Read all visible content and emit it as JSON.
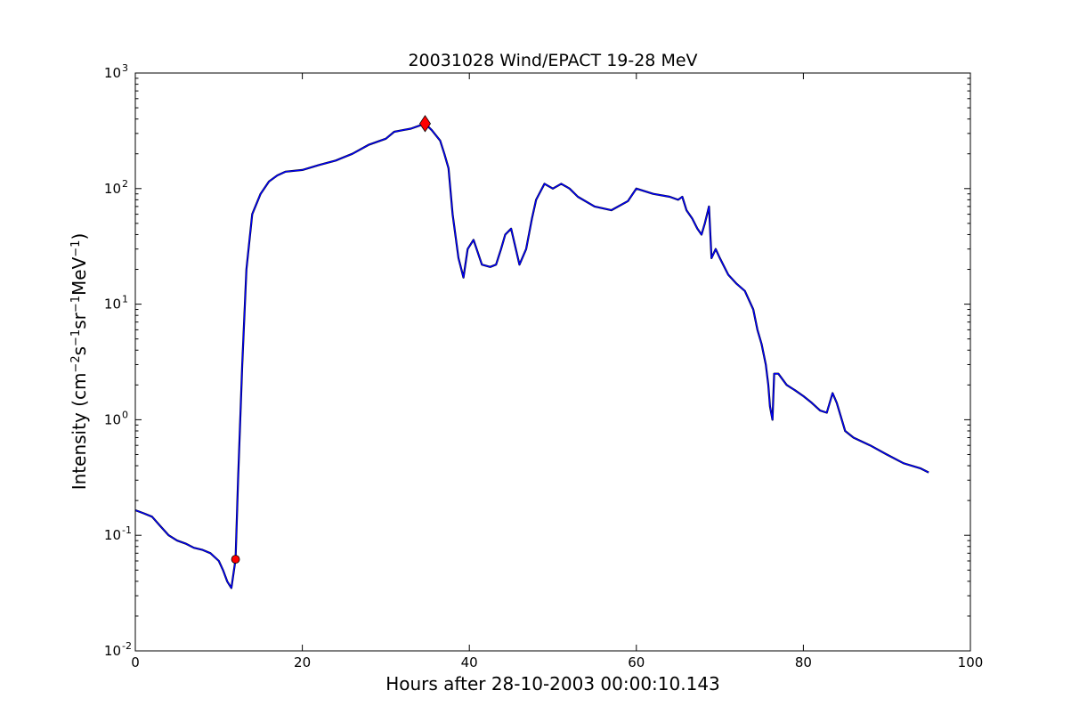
{
  "chart_data": {
    "type": "line",
    "title": "20031028 Wind/EPACT 19-28 MeV",
    "xlabel": "Hours after 28-10-2003 00:00:10.143",
    "ylabel_parts": [
      "Intensity (cm",
      "−2",
      "s",
      "−1",
      "sr",
      "−1",
      "MeV",
      "−1",
      ")"
    ],
    "xlim": [
      0,
      100
    ],
    "ylim": [
      0.01,
      1000
    ],
    "yscale": "log",
    "grid": false,
    "x_ticks": [
      0,
      20,
      40,
      60,
      80,
      100
    ],
    "x_tick_labels": [
      "0",
      "20",
      "40",
      "60",
      "80",
      "100"
    ],
    "y_ticks": [
      0.01,
      0.1,
      1,
      10,
      100,
      1000
    ],
    "y_tick_labels": [
      {
        "base": "10",
        "exp": "-2"
      },
      {
        "base": "10",
        "exp": "-1"
      },
      {
        "base": "10",
        "exp": "0"
      },
      {
        "base": "10",
        "exp": "1"
      },
      {
        "base": "10",
        "exp": "2"
      },
      {
        "base": "10",
        "exp": "3"
      }
    ],
    "series": [
      {
        "role": "raw",
        "color": "#000000",
        "x": [
          0,
          1,
          2,
          3,
          4,
          5,
          6,
          7,
          8,
          9,
          10,
          10.5,
          11,
          11.5,
          12,
          12.3,
          12.8,
          13.3,
          14,
          15,
          16,
          17,
          18,
          20,
          22,
          24,
          26,
          28,
          30,
          31,
          32,
          33,
          34,
          34.7,
          35.5,
          36.5,
          37,
          37.5,
          38,
          38.7,
          39.3,
          39.8,
          40.5,
          41.5,
          42.5,
          43.2,
          43.8,
          44.3,
          45,
          46,
          46.8,
          47.5,
          48,
          49,
          50,
          51,
          52,
          53,
          55,
          57,
          59,
          60,
          62,
          64,
          65,
          65.5,
          66,
          66.7,
          67.3,
          67.8,
          68.2,
          68.7,
          69,
          69.5,
          70,
          71,
          72,
          73,
          74,
          74.5,
          75,
          75.5,
          75.8,
          76,
          76.3,
          76.5,
          77,
          78,
          79,
          80,
          81,
          82,
          82.8,
          83.5,
          84,
          85,
          86,
          88,
          90,
          92,
          94,
          95
        ],
        "y": [
          0.165,
          0.155,
          0.145,
          0.12,
          0.1,
          0.09,
          0.085,
          0.078,
          0.075,
          0.07,
          0.06,
          0.05,
          0.04,
          0.035,
          0.062,
          0.3,
          3,
          20,
          60,
          90,
          115,
          130,
          140,
          145,
          160,
          175,
          200,
          240,
          270,
          310,
          320,
          330,
          350,
          365,
          320,
          260,
          200,
          150,
          60,
          25,
          17,
          30,
          36,
          22,
          21,
          22,
          30,
          40,
          45,
          22,
          30,
          55,
          80,
          110,
          100,
          110,
          100,
          85,
          70,
          65,
          78,
          100,
          90,
          85,
          80,
          85,
          65,
          55,
          45,
          40,
          50,
          70,
          25,
          30,
          25,
          18,
          15,
          13,
          9,
          6,
          4.5,
          3,
          2,
          1.3,
          1,
          2.5,
          2.5,
          2,
          1.8,
          1.6,
          1.4,
          1.2,
          1.15,
          1.7,
          1.4,
          0.8,
          0.7,
          0.6,
          0.5,
          0.42,
          0.38,
          0.35
        ]
      },
      {
        "role": "smoothed",
        "color": "#0000ff",
        "x": [
          0,
          1,
          2,
          3,
          4,
          5,
          6,
          7,
          8,
          9,
          10,
          10.5,
          11,
          11.5,
          12,
          12.3,
          12.8,
          13.3,
          14,
          15,
          16,
          17,
          18,
          20,
          22,
          24,
          26,
          28,
          30,
          31,
          32,
          33,
          34,
          34.7,
          35.5,
          36.5,
          37,
          37.5,
          38,
          38.7,
          39.3,
          39.8,
          40.5,
          41.5,
          42.5,
          43.2,
          43.8,
          44.3,
          45,
          46,
          46.8,
          47.5,
          48,
          49,
          50,
          51,
          52,
          53,
          55,
          57,
          59,
          60,
          62,
          64,
          65,
          65.5,
          66,
          66.7,
          67.3,
          67.8,
          68.2,
          68.7,
          69,
          69.5,
          70,
          71,
          72,
          73,
          74,
          74.5,
          75,
          75.5,
          75.8,
          76,
          76.3,
          76.5,
          77,
          78,
          79,
          80,
          81,
          82,
          82.8,
          83.5,
          84,
          85,
          86,
          88,
          90,
          92,
          94,
          95
        ],
        "y": [
          0.165,
          0.155,
          0.145,
          0.12,
          0.1,
          0.09,
          0.085,
          0.078,
          0.075,
          0.07,
          0.06,
          0.05,
          0.04,
          0.035,
          0.062,
          0.3,
          3,
          20,
          60,
          90,
          115,
          130,
          140,
          145,
          160,
          175,
          200,
          240,
          270,
          310,
          320,
          330,
          350,
          365,
          320,
          260,
          200,
          150,
          60,
          25,
          17,
          30,
          36,
          22,
          21,
          22,
          30,
          40,
          45,
          22,
          30,
          55,
          80,
          110,
          100,
          110,
          100,
          85,
          70,
          65,
          78,
          100,
          90,
          85,
          80,
          85,
          65,
          55,
          45,
          40,
          50,
          70,
          25,
          30,
          25,
          18,
          15,
          13,
          9,
          6,
          4.5,
          3,
          2,
          1.3,
          1,
          2.5,
          2.5,
          2,
          1.8,
          1.6,
          1.4,
          1.2,
          1.15,
          1.7,
          1.4,
          0.8,
          0.7,
          0.6,
          0.5,
          0.42,
          0.38,
          0.35
        ]
      }
    ],
    "markers": [
      {
        "x": 12.0,
        "y": 0.062,
        "shape": "circle",
        "color": "#ff0000"
      },
      {
        "x": 34.7,
        "y": 365,
        "shape": "diamond",
        "color": "#ff0000"
      }
    ]
  }
}
